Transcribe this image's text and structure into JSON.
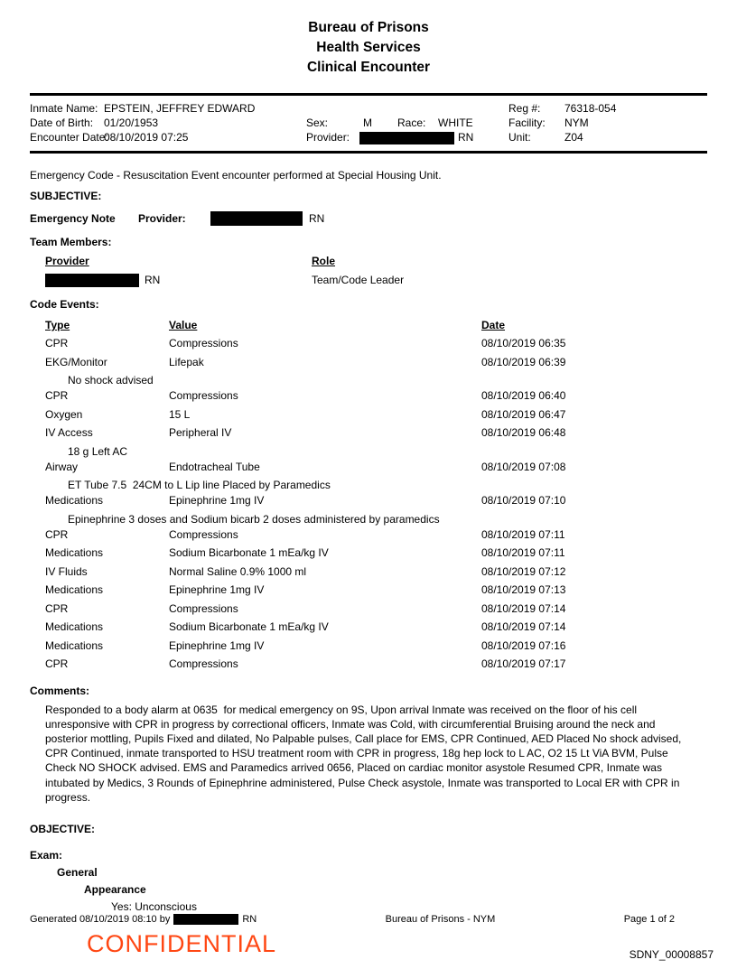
{
  "title": {
    "line1": "Bureau of Prisons",
    "line2": "Health Services",
    "line3": "Clinical Encounter"
  },
  "header": {
    "inmate_name_label": "Inmate Name:",
    "inmate_name": "EPSTEIN, JEFFREY EDWARD",
    "dob_label": "Date of Birth:",
    "dob": "01/20/1953",
    "encounter_date_label": "Encounter Date:",
    "encounter_date": "08/10/2019 07:25",
    "sex_label": "Sex:",
    "sex": "M",
    "race_label": "Race:",
    "race": "WHITE",
    "provider_label": "Provider:",
    "provider_suffix": "RN",
    "reg_label": "Reg #:",
    "reg": "76318-054",
    "facility_label": "Facility:",
    "facility": "NYM",
    "unit_label": "Unit:",
    "unit": "Z04"
  },
  "body": {
    "encounter_line": "Emergency Code - Resuscitation Event encounter performed at Special Housing Unit.",
    "subjective_heading": "SUBJECTIVE:",
    "emergency_note_label": "Emergency Note",
    "provider_label": "Provider:",
    "provider_suffix": "RN",
    "team_members_heading": "Team Members:",
    "team_table": {
      "provider_header": "Provider",
      "role_header": "Role",
      "rows": [
        {
          "provider_redacted": true,
          "provider_suffix": "RN",
          "role": "Team/Code Leader"
        }
      ]
    },
    "code_events_heading": "Code Events:",
    "code_events_table": {
      "headers": [
        "Type",
        "Value",
        "Date"
      ],
      "rows": [
        {
          "type": "CPR",
          "value": "Compressions",
          "date": "08/10/2019 06:35"
        },
        {
          "type": "EKG/Monitor",
          "value": "Lifepak",
          "date": "08/10/2019 06:39",
          "note": "No shock advised"
        },
        {
          "type": "CPR",
          "value": "Compressions",
          "date": "08/10/2019 06:40"
        },
        {
          "type": "Oxygen",
          "value": "15 L",
          "date": "08/10/2019 06:47"
        },
        {
          "type": "IV Access",
          "value": "Peripheral IV",
          "date": "08/10/2019 06:48",
          "note": "18 g Left AC"
        },
        {
          "type": "Airway",
          "value": "Endotracheal Tube",
          "date": "08/10/2019 07:08",
          "note": "ET Tube 7.5  24CM to L Lip line Placed by Paramedics"
        },
        {
          "type": "Medications",
          "value": "Epinephrine 1mg IV",
          "date": "08/10/2019 07:10",
          "note": "Epinephrine 3 doses and Sodium bicarb 2 doses administered by paramedics"
        },
        {
          "type": "CPR",
          "value": "Compressions",
          "date": "08/10/2019 07:11"
        },
        {
          "type": "Medications",
          "value": "Sodium Bicarbonate 1 mEa/kg IV",
          "date": "08/10/2019 07:11"
        },
        {
          "type": "IV Fluids",
          "value": "Normal Saline 0.9% 1000 ml",
          "date": "08/10/2019 07:12"
        },
        {
          "type": "Medications",
          "value": "Epinephrine 1mg IV",
          "date": "08/10/2019 07:13"
        },
        {
          "type": "CPR",
          "value": "Compressions",
          "date": "08/10/2019 07:14"
        },
        {
          "type": "Medications",
          "value": "Sodium Bicarbonate 1 mEa/kg IV",
          "date": "08/10/2019 07:14"
        },
        {
          "type": "Medications",
          "value": "Epinephrine 1mg IV",
          "date": "08/10/2019 07:16"
        },
        {
          "type": "CPR",
          "value": "Compressions",
          "date": "08/10/2019 07:17"
        }
      ]
    },
    "comments_heading": "Comments:",
    "comments_text": "Responded to a body alarm at 0635  for medical emergency on 9S, Upon arrival Inmate was received on the floor of his cell unresponsive with CPR in progress by correctional officers, Inmate was Cold, with circumferential Bruising around the neck and posterior mottling, Pupils Fixed and dilated, No Palpable pulses, Call place for EMS, CPR Continued, AED Placed No shock advised, CPR Continued, inmate transported to HSU treatment room with CPR in progress, 18g hep lock to L AC, O2 15 Lt ViA BVM, Pulse Check NO SHOCK advised. EMS and Paramedics arrived 0656, Placed on cardiac monitor asystole Resumed CPR, Inmate was intubated by Medics, 3 Rounds of Epinephrine administered, Pulse Check asystole, Inmate was transported to Local ER with CPR in progress.",
    "objective_heading": "OBJECTIVE:",
    "exam_heading": "Exam:",
    "exam_general": "General",
    "exam_appearance": "Appearance",
    "exam_value": "Yes: Unconscious"
  },
  "footer": {
    "generated_prefix": "Generated 08/10/2019 08:10 by",
    "generated_suffix": "RN",
    "center": "Bureau of Prisons - NYM",
    "page": "Page 1 of 2",
    "confidential": "CONFIDENTIAL",
    "bates": "SDNY_00008857"
  },
  "colors": {
    "confidential": "#FF4713",
    "redaction": "#000000"
  }
}
